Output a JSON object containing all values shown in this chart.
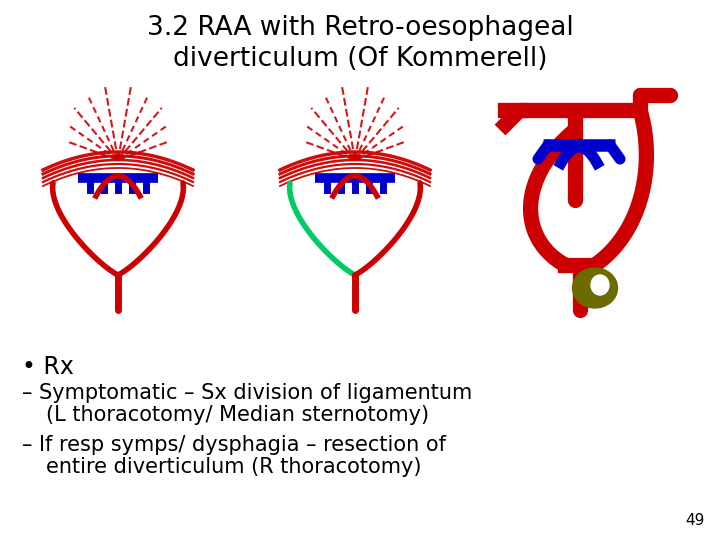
{
  "title_line1": "3.2 RAA with Retro-oesophageal",
  "title_line2": "diverticulum (Of Kommerell)",
  "bullet": "• Rx",
  "sub1_line1": "– Symptomatic – Sx division of ligamentum",
  "sub1_line2": "(L thoracotomy/ Median sternotomy)",
  "sub2_line1": "– If resp symps/ dysphagia – resection of",
  "sub2_line2": "entire diverticulum (R thoracotomy)",
  "page_num": "49",
  "bg_color": "#ffffff",
  "red": "#cc0000",
  "blue": "#0000cc",
  "green": "#00cc66",
  "olive": "#6b6b00",
  "title_fontsize": 19,
  "body_fontsize": 15,
  "bullet_fontsize": 17
}
